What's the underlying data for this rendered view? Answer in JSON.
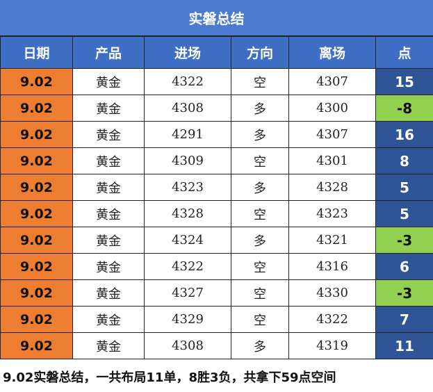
{
  "header": {
    "title": "实磐总结"
  },
  "table": {
    "columns": [
      "日期",
      "产品",
      "进场",
      "方向",
      "离场",
      "点"
    ],
    "rows": [
      [
        "9.02",
        "黄金",
        "4322",
        "空",
        "4307",
        "15"
      ],
      [
        "9.02",
        "黄金",
        "4308",
        "多",
        "4300",
        "-8"
      ],
      [
        "9.02",
        "黄金",
        "4291",
        "多",
        "4307",
        "16"
      ],
      [
        "9.02",
        "黄金",
        "4309",
        "空",
        "4301",
        "8"
      ],
      [
        "9.02",
        "黄金",
        "4323",
        "多",
        "4328",
        "5"
      ],
      [
        "9.02",
        "黄金",
        "4328",
        "空",
        "4323",
        "5"
      ],
      [
        "9.02",
        "黄金",
        "4324",
        "多",
        "4321",
        "-3"
      ],
      [
        "9.02",
        "黄金",
        "4322",
        "空",
        "4316",
        "6"
      ],
      [
        "9.02",
        "黄金",
        "4327",
        "空",
        "4330",
        "-3"
      ],
      [
        "9.02",
        "黄金",
        "4329",
        "空",
        "4322",
        "7"
      ],
      [
        "9.02",
        "黄金",
        "4308",
        "多",
        "4319",
        "11"
      ]
    ]
  },
  "footer": {
    "text": "9.02实磐总结，一共布局11单，8胜3负，共拿下59点空间"
  }
}
